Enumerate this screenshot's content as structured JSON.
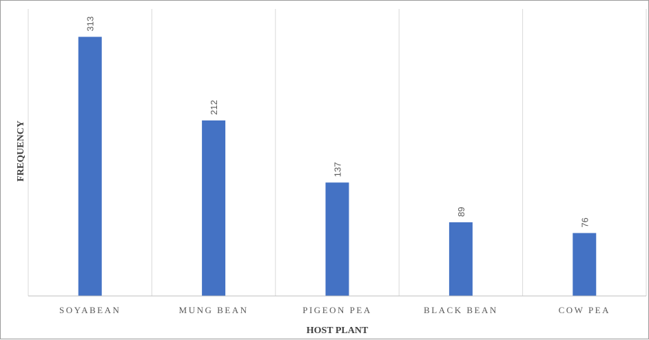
{
  "chart_data": {
    "type": "bar",
    "categories": [
      "SOYABEAN",
      "MUNG BEAN",
      "PIGEON PEA",
      "BLACK BEAN",
      "COW PEA"
    ],
    "values": [
      313,
      212,
      137,
      89,
      76
    ],
    "xlabel": "HOST PLANT",
    "ylabel": "FREQUENCY",
    "ylim": [
      0,
      350
    ],
    "grid": "vertical category separators",
    "legend": "none",
    "bar_color": "#4472C4",
    "data_labels": "rotated, above bars"
  }
}
